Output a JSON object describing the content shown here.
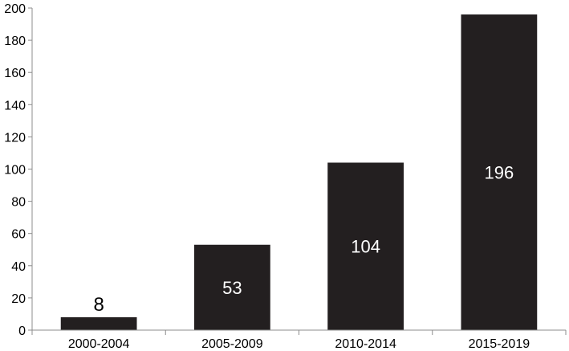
{
  "chart_data": {
    "type": "bar",
    "title": "",
    "xlabel": "",
    "ylabel": "",
    "categories": [
      "2000-2004",
      "2005-2009",
      "2010-2014",
      "2015-2019"
    ],
    "values": [
      8,
      53,
      104,
      196
    ],
    "data_labels": [
      "8",
      "53",
      "104",
      "196"
    ],
    "ylim": [
      0,
      200
    ],
    "yticks": [
      0,
      20,
      40,
      60,
      80,
      100,
      120,
      140,
      160,
      180,
      200
    ],
    "grid": false,
    "legend": "none",
    "colors": {
      "bar": "#231f20",
      "label_inside": "#ffffff",
      "label_outside": "#000000",
      "axis": "#8c8c8c",
      "tick_text": "#000000"
    }
  }
}
